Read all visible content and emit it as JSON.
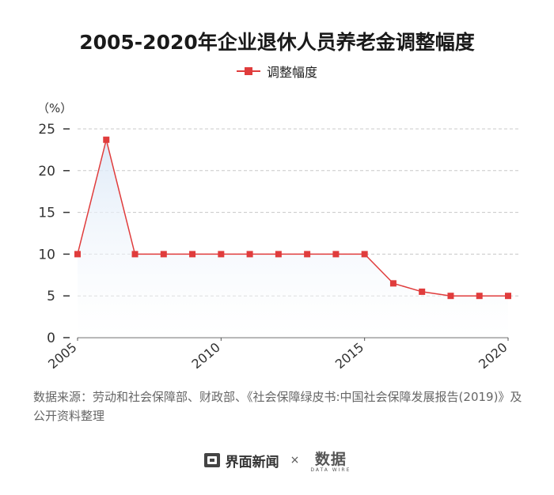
{
  "title": "2005-2020年企业退休人员养老金调整幅度",
  "legend": {
    "label": "调整幅度"
  },
  "unit": "（%）",
  "source": "数据来源：劳动和社会保障部、财政部、《社会保障绿皮书:中国社会保障发展报告(2019)》及公开资料整理",
  "footer": {
    "brand1": "界面新闻",
    "times": "×",
    "brand2": "数据",
    "brand2_sub": "DATA WIRE"
  },
  "colors": {
    "line": "#e03c3c",
    "area_top": "#dbe8f7",
    "grid": "#c8c8c8"
  },
  "chart_data": {
    "type": "line",
    "x": [
      2005,
      2006,
      2007,
      2008,
      2009,
      2010,
      2011,
      2012,
      2013,
      2014,
      2015,
      2016,
      2017,
      2018,
      2019,
      2020
    ],
    "series": [
      {
        "name": "调整幅度",
        "values": [
          10,
          23.7,
          10,
          10,
          10,
          10,
          10,
          10,
          10,
          10,
          10,
          6.5,
          5.5,
          5,
          5,
          5
        ]
      }
    ],
    "xticks": [
      2005,
      2010,
      2015,
      2020
    ],
    "xlim": [
      2005,
      2020
    ],
    "yticks": [
      0,
      5,
      10,
      15,
      20,
      25
    ],
    "ylim": [
      0,
      25
    ],
    "ylabel": "（%）",
    "grid": true,
    "legend_position": "top-center"
  }
}
